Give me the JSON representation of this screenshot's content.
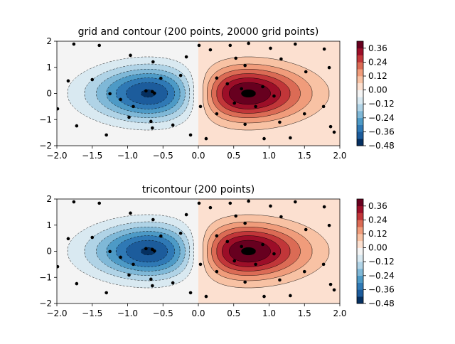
{
  "chart_data": [
    {
      "type": "contour",
      "title": "grid and contour (200 points, 20000 grid points)",
      "xlim": [
        -2,
        2
      ],
      "ylim": [
        -2,
        2
      ],
      "xticks": [
        {
          "value": -2,
          "label": "−2.0"
        },
        {
          "value": -1.5,
          "label": "−1.5"
        },
        {
          "value": -1,
          "label": "−1.0"
        },
        {
          "value": -0.5,
          "label": "−0.5"
        },
        {
          "value": 0,
          "label": "0.0"
        },
        0.5,
        {
          "value": 1,
          "label": "1.0"
        },
        1.5,
        {
          "value": 2,
          "label": "2.0"
        }
      ],
      "yticks": [
        {
          "value": -2,
          "label": "−2"
        },
        {
          "value": -1,
          "label": "−1"
        },
        0,
        1,
        2
      ],
      "levels": [
        -0.48,
        -0.42,
        -0.36,
        -0.3,
        -0.24,
        -0.18,
        -0.12,
        -0.06,
        0,
        0.06,
        0.12,
        0.18,
        0.24,
        0.3,
        0.36,
        0.42
      ],
      "colors": [
        "#053061",
        "#1c5c9c",
        "#2f79b5",
        "#4d9ac6",
        "#7fb8d7",
        "#b0d3e6",
        "#d9e9f1",
        "#f4f4f4",
        "#fce0d0",
        "#f8c2a4",
        "#f09c7b",
        "#db6b55",
        "#c13639",
        "#9c0e28",
        "#67001f"
      ],
      "colorbar_ticks": [
        {
          "value": -0.48,
          "label": "−0.48"
        },
        {
          "value": -0.36,
          "label": "−0.36"
        },
        {
          "value": -0.24,
          "label": "−0.24"
        },
        {
          "value": -0.12,
          "label": "−0.12"
        },
        {
          "value": 0,
          "label": "0.00"
        },
        0.12,
        0.24,
        0.36
      ],
      "x": [
        -1.76,
        -1.4,
        -0.96,
        -0.64,
        -0.17,
        -0.25,
        -0.53,
        -1.5,
        -1.25,
        -1.1,
        -0.74,
        -0.65,
        -0.62,
        -0.92,
        -0.67,
        -0.65,
        -0.98,
        -1.72,
        -1.3,
        -0.36,
        -0.11,
        -1.99,
        -1.84,
        0.01,
        0.17,
        0.45,
        0.71,
        1.02,
        1.37,
        1.78,
        1.85,
        1.52,
        1.17,
        0.66,
        0.26,
        0.41,
        0.61,
        0.76,
        0.91,
        1.07,
        0.51,
        0.81,
        0.26,
        0.66,
        1.15,
        1.5,
        1.77,
        1.87,
        1.92,
        0.11,
        0.93,
        1.3,
        0.53,
        0.03
      ],
      "y": [
        1.89,
        1.84,
        1.46,
        1.21,
        1.4,
        0.69,
        0.58,
        0.53,
        -0.01,
        -0.23,
        0.1,
        0.07,
        0.01,
        -0.5,
        -1.07,
        -1.32,
        -0.91,
        -1.24,
        -1.59,
        -1.21,
        -1.59,
        -0.59,
        0.48,
        1.84,
        1.67,
        1.84,
        1.92,
        1.73,
        1.89,
        1.7,
        0.99,
        0.83,
        1.32,
        1.07,
        0.59,
        0.37,
        0.18,
        0.04,
        0.26,
        -0.1,
        -0.37,
        -0.5,
        -0.78,
        -1.18,
        -1.1,
        -0.78,
        -0.5,
        -1.27,
        -1.48,
        -1.73,
        -1.73,
        -1.7,
        1.35,
        -0.5
      ]
    },
    {
      "type": "contour",
      "title": "tricontour (200 points)",
      "xlim": [
        -2,
        2
      ],
      "ylim": [
        -2,
        2
      ],
      "xticks": [
        {
          "value": -2,
          "label": "−2.0"
        },
        {
          "value": -1.5,
          "label": "−1.5"
        },
        {
          "value": -1,
          "label": "−1.0"
        },
        {
          "value": -0.5,
          "label": "−0.5"
        },
        {
          "value": 0,
          "label": "0.0"
        },
        0.5,
        {
          "value": 1,
          "label": "1.0"
        },
        1.5,
        {
          "value": 2,
          "label": "2.0"
        }
      ],
      "yticks": [
        {
          "value": -2,
          "label": "−2"
        },
        {
          "value": -1,
          "label": "−1"
        },
        0,
        1,
        2
      ],
      "levels": [
        -0.48,
        -0.42,
        -0.36,
        -0.3,
        -0.24,
        -0.18,
        -0.12,
        -0.06,
        0,
        0.06,
        0.12,
        0.18,
        0.24,
        0.3,
        0.36,
        0.42
      ],
      "colors": [
        "#053061",
        "#1c5c9c",
        "#2f79b5",
        "#4d9ac6",
        "#7fb8d7",
        "#b0d3e6",
        "#d9e9f1",
        "#f4f4f4",
        "#fce0d0",
        "#f8c2a4",
        "#f09c7b",
        "#db6b55",
        "#c13639",
        "#9c0e28",
        "#67001f"
      ],
      "colorbar_ticks": [
        {
          "value": -0.48,
          "label": "−0.48"
        },
        {
          "value": -0.36,
          "label": "−0.36"
        },
        {
          "value": -0.24,
          "label": "−0.24"
        },
        {
          "value": -0.12,
          "label": "−0.12"
        },
        {
          "value": 0,
          "label": "0.00"
        },
        0.12,
        0.24,
        0.36
      ],
      "x": [
        -1.76,
        -1.4,
        -0.96,
        -0.64,
        -0.17,
        -0.25,
        -0.53,
        -1.5,
        -1.25,
        -1.1,
        -0.74,
        -0.65,
        -0.62,
        -0.92,
        -0.67,
        -0.65,
        -0.98,
        -1.72,
        -1.3,
        -0.36,
        -0.11,
        -1.99,
        -1.84,
        0.01,
        0.17,
        0.45,
        0.71,
        1.02,
        1.37,
        1.78,
        1.85,
        1.52,
        1.17,
        0.66,
        0.26,
        0.41,
        0.61,
        0.76,
        0.91,
        1.07,
        0.51,
        0.81,
        0.26,
        0.66,
        1.15,
        1.5,
        1.77,
        1.87,
        1.92,
        0.11,
        0.93,
        1.3,
        0.53,
        0.03
      ],
      "y": [
        1.89,
        1.84,
        1.46,
        1.21,
        1.4,
        0.69,
        0.58,
        0.53,
        -0.01,
        -0.23,
        0.1,
        0.07,
        0.01,
        -0.5,
        -1.07,
        -1.32,
        -0.91,
        -1.24,
        -1.59,
        -1.21,
        -1.59,
        -0.59,
        0.48,
        1.84,
        1.67,
        1.84,
        1.92,
        1.73,
        1.89,
        1.7,
        0.99,
        0.83,
        1.32,
        1.07,
        0.59,
        0.37,
        0.18,
        0.04,
        0.26,
        -0.1,
        -0.37,
        -0.5,
        -0.78,
        -1.18,
        -1.1,
        -0.78,
        -0.5,
        -1.27,
        -1.48,
        -1.73,
        -1.73,
        -1.7,
        1.35,
        -0.5
      ]
    }
  ]
}
